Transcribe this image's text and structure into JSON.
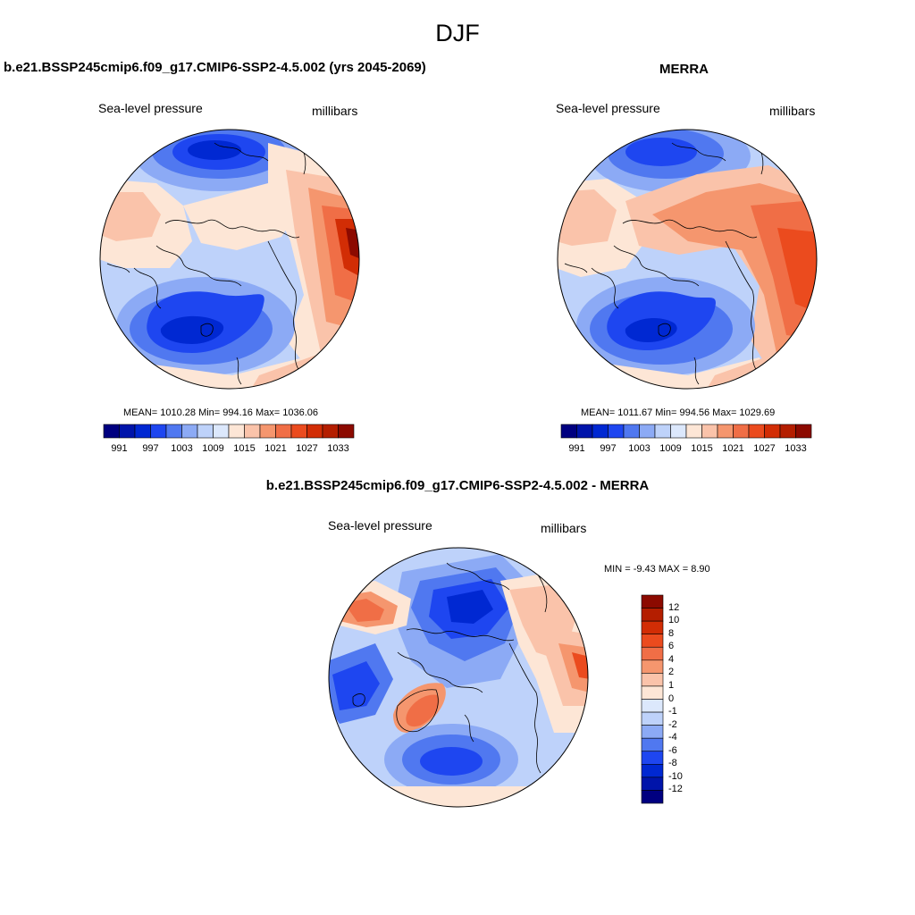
{
  "figure": {
    "title": "DJF"
  },
  "colors": {
    "levels": [
      "#000080",
      "#0014aa",
      "#0028d2",
      "#1e46f0",
      "#5078f0",
      "#8caaf5",
      "#bed2fa",
      "#dce8fc",
      "#fde6d6",
      "#fac3aa",
      "#f5966e",
      "#f06e46",
      "#eb4b1e",
      "#d22d05",
      "#b41e00",
      "#8c0a00"
    ],
    "coast": "#000000",
    "land_tint": "#f5c8b4"
  },
  "panels": [
    {
      "title": "b.e21.BSSP245cmip6.f09_g17.CMIP6-SSP2-4.5.002 (yrs 2045-2069)",
      "variable": "Sea-level pressure",
      "units": "millibars",
      "stats": "MEAN= 1010.28  Min= 994.16  Max= 1036.06",
      "colorbar_ticks": [
        "991",
        "997",
        "1003",
        "1009",
        "1015",
        "1021",
        "1027",
        "1033"
      ]
    },
    {
      "title": "MERRA",
      "variable": "Sea-level pressure",
      "units": "millibars",
      "stats": "MEAN= 1011.67  Min= 994.56  Max= 1029.69",
      "colorbar_ticks": [
        "991",
        "997",
        "1003",
        "1009",
        "1015",
        "1021",
        "1027",
        "1033"
      ]
    },
    {
      "title": "b.e21.BSSP245cmip6.f09_g17.CMIP6-SSP2-4.5.002 - MERRA",
      "variable": "Sea-level pressure",
      "units": "millibars",
      "stats": "MIN =  -9.43 MAX =   8.90",
      "colorbar_ticks": [
        "12",
        "10",
        "8",
        "6",
        "4",
        "2",
        "1",
        "0",
        "-1",
        "-2",
        "-4",
        "-6",
        "-8",
        "-10",
        "-12"
      ]
    }
  ]
}
